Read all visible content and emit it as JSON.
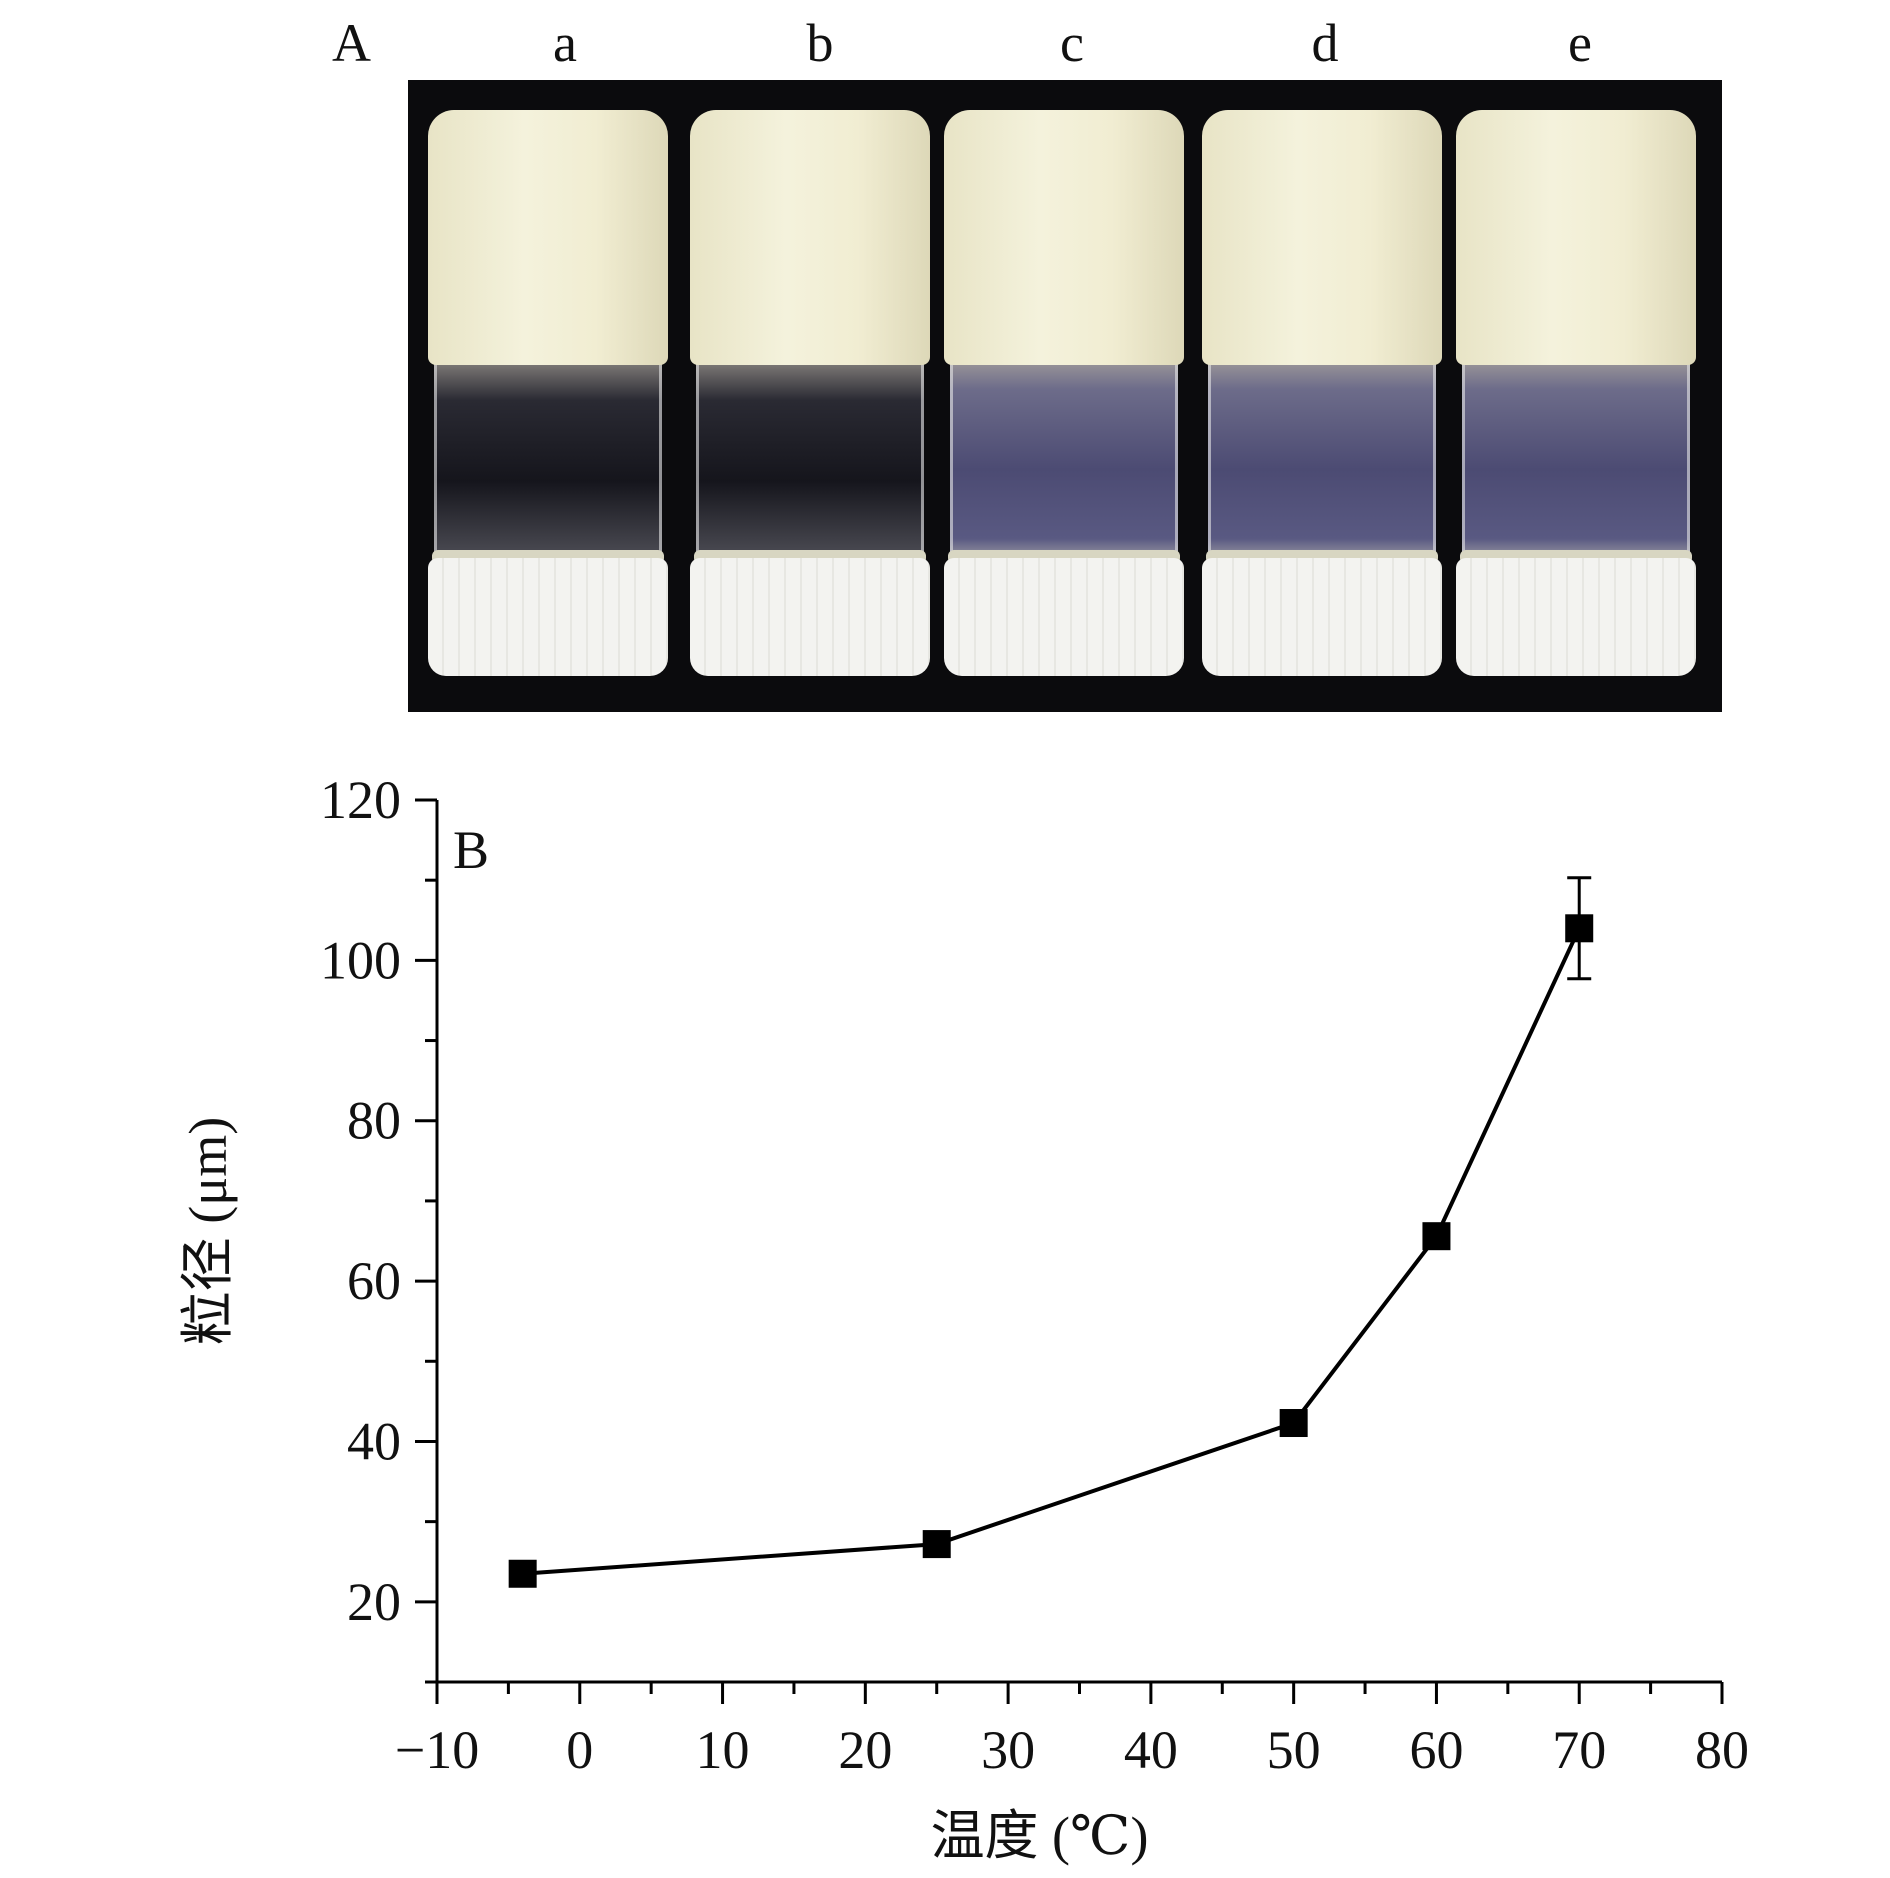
{
  "figure": {
    "panel_a": {
      "letter": "A",
      "vial_labels": [
        "a",
        "b",
        "c",
        "d",
        "e"
      ],
      "vial_contents": [
        "dark",
        "dark",
        "powder",
        "powder",
        "powder"
      ]
    },
    "panel_b": {
      "letter": "B"
    }
  },
  "chart_data": {
    "type": "line",
    "title": "",
    "xlabel": "温度 (℃)",
    "ylabel": "粒径 (μm)",
    "xlim": [
      -10,
      80
    ],
    "ylim": [
      10,
      120
    ],
    "xticks": [
      -10,
      0,
      10,
      20,
      30,
      40,
      50,
      60,
      70,
      80
    ],
    "xtick_labels": [
      "−10",
      "0",
      "10",
      "20",
      "30",
      "40",
      "50",
      "60",
      "70",
      "80"
    ],
    "yticks": [
      20,
      40,
      60,
      80,
      100,
      120
    ],
    "ytick_labels": [
      "20",
      "40",
      "60",
      "80",
      "100",
      "120"
    ],
    "marker": "square",
    "color": "#000000",
    "grid": false,
    "series": [
      {
        "x": [
          -4,
          25,
          50,
          60,
          70
        ],
        "y": [
          23.5,
          27.2,
          42.3,
          65.6,
          104.0
        ],
        "error": [
          0,
          0,
          0,
          0,
          6.3
        ]
      }
    ]
  }
}
